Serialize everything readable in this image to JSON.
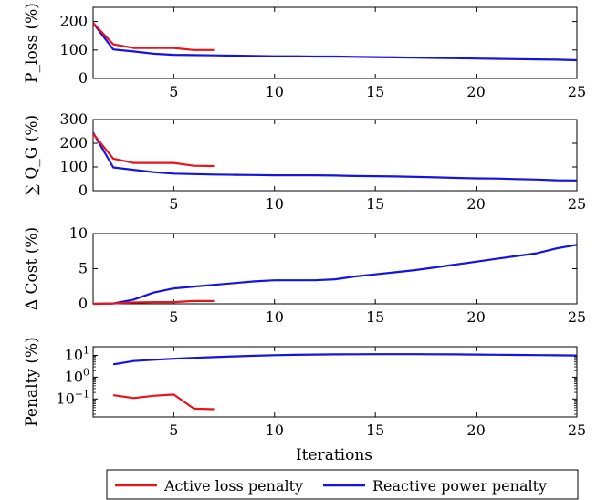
{
  "chart_data": [
    {
      "type": "line",
      "ylabel": "P_loss (%)",
      "xlim": [
        1,
        25
      ],
      "ylim": [
        0,
        250
      ],
      "xticks": [
        "5",
        "10",
        "15",
        "20",
        "25"
      ],
      "yticks": [
        "0",
        "100",
        "200"
      ],
      "ytick_values": [
        0,
        100,
        200
      ],
      "series": [
        {
          "name": "Active loss penalty",
          "color": "#e8141c",
          "x": [
            1,
            2,
            3,
            4,
            5,
            6,
            7
          ],
          "values": [
            195,
            120,
            107,
            107,
            107,
            100,
            100
          ]
        },
        {
          "name": "Reactive power penalty",
          "color": "#1414e0",
          "x": [
            1,
            2,
            3,
            4,
            5,
            6,
            7,
            8,
            9,
            10,
            11,
            12,
            13,
            14,
            15,
            16,
            17,
            18,
            19,
            20,
            21,
            22,
            23,
            24,
            25
          ],
          "values": [
            195,
            102,
            95,
            87,
            83,
            82,
            81,
            80,
            79,
            78,
            78,
            77,
            77,
            76,
            75,
            74,
            73,
            72,
            71,
            70,
            69,
            68,
            67,
            66,
            64
          ]
        }
      ]
    },
    {
      "type": "line",
      "ylabel": "∑ Q_G (%)",
      "xlim": [
        1,
        25
      ],
      "ylim": [
        0,
        300
      ],
      "xticks": [
        "5",
        "10",
        "15",
        "20",
        "25"
      ],
      "yticks": [
        "0",
        "100",
        "200",
        "300"
      ],
      "ytick_values": [
        0,
        100,
        200,
        300
      ],
      "series": [
        {
          "name": "Active loss penalty",
          "color": "#e8141c",
          "x": [
            1,
            2,
            3,
            4,
            5,
            6,
            7
          ],
          "values": [
            240,
            135,
            117,
            117,
            117,
            105,
            104
          ]
        },
        {
          "name": "Reactive power penalty",
          "color": "#1414e0",
          "x": [
            1,
            2,
            3,
            4,
            5,
            6,
            7,
            8,
            9,
            10,
            11,
            12,
            13,
            14,
            15,
            16,
            17,
            18,
            19,
            20,
            21,
            22,
            23,
            24,
            25
          ],
          "values": [
            245,
            98,
            88,
            78,
            72,
            70,
            68,
            67,
            66,
            65,
            65,
            65,
            64,
            62,
            61,
            60,
            58,
            56,
            54,
            52,
            51,
            49,
            47,
            44,
            43
          ]
        }
      ]
    },
    {
      "type": "line",
      "ylabel": "Δ Cost (%)",
      "xlim": [
        1,
        25
      ],
      "ylim": [
        0,
        10
      ],
      "xticks": [
        "5",
        "10",
        "15",
        "20",
        "25"
      ],
      "yticks": [
        "0",
        "5",
        "10"
      ],
      "ytick_values": [
        0,
        5,
        10
      ],
      "series": [
        {
          "name": "Active loss penalty",
          "color": "#e8141c",
          "x": [
            1,
            2,
            3,
            4,
            5,
            6,
            7
          ],
          "values": [
            0,
            0.05,
            0.2,
            0.25,
            0.25,
            0.4,
            0.4
          ]
        },
        {
          "name": "Reactive power penalty",
          "color": "#1414e0",
          "x": [
            1,
            2,
            3,
            4,
            5,
            6,
            7,
            8,
            9,
            10,
            11,
            12,
            13,
            14,
            15,
            16,
            17,
            18,
            19,
            20,
            21,
            22,
            23,
            24,
            25
          ],
          "values": [
            0,
            0.05,
            0.6,
            1.6,
            2.2,
            2.45,
            2.7,
            2.95,
            3.2,
            3.35,
            3.35,
            3.35,
            3.5,
            3.9,
            4.2,
            4.5,
            4.8,
            5.2,
            5.6,
            6.0,
            6.4,
            6.8,
            7.2,
            7.9,
            8.4
          ]
        }
      ]
    },
    {
      "type": "line",
      "ylabel": "Penalty (%)",
      "yscale": "log",
      "xlim": [
        1,
        25
      ],
      "ylim": [
        0.015,
        25
      ],
      "xticks": [
        "5",
        "10",
        "15",
        "20",
        "25"
      ],
      "yticks": [
        "10^−1",
        "10^0",
        "10^1"
      ],
      "ytick_values": [
        0.1,
        1,
        10
      ],
      "series": [
        {
          "name": "Active loss penalty",
          "color": "#e8141c",
          "x": [
            2,
            3,
            4,
            5,
            6,
            7
          ],
          "values": [
            0.15,
            0.11,
            0.14,
            0.16,
            0.036,
            0.034
          ]
        },
        {
          "name": "Reactive power penalty",
          "color": "#1414e0",
          "x": [
            2,
            3,
            4,
            5,
            6,
            7,
            8,
            9,
            10,
            11,
            12,
            13,
            14,
            15,
            16,
            17,
            18,
            19,
            20,
            21,
            22,
            23,
            24,
            25
          ],
          "values": [
            3.9,
            5.5,
            6.3,
            7.0,
            7.7,
            8.3,
            9.0,
            9.6,
            10.2,
            10.6,
            10.9,
            11.1,
            11.2,
            11.3,
            11.3,
            11.3,
            11.2,
            11.1,
            10.9,
            10.7,
            10.5,
            10.3,
            10.1,
            9.9
          ]
        }
      ]
    }
  ],
  "xlabel": "Iterations",
  "legend": {
    "placement": "bottom-center",
    "entries": [
      {
        "label": "Active loss penalty",
        "color": "#e8141c"
      },
      {
        "label": "Reactive power penalty",
        "color": "#1414e0"
      }
    ]
  }
}
